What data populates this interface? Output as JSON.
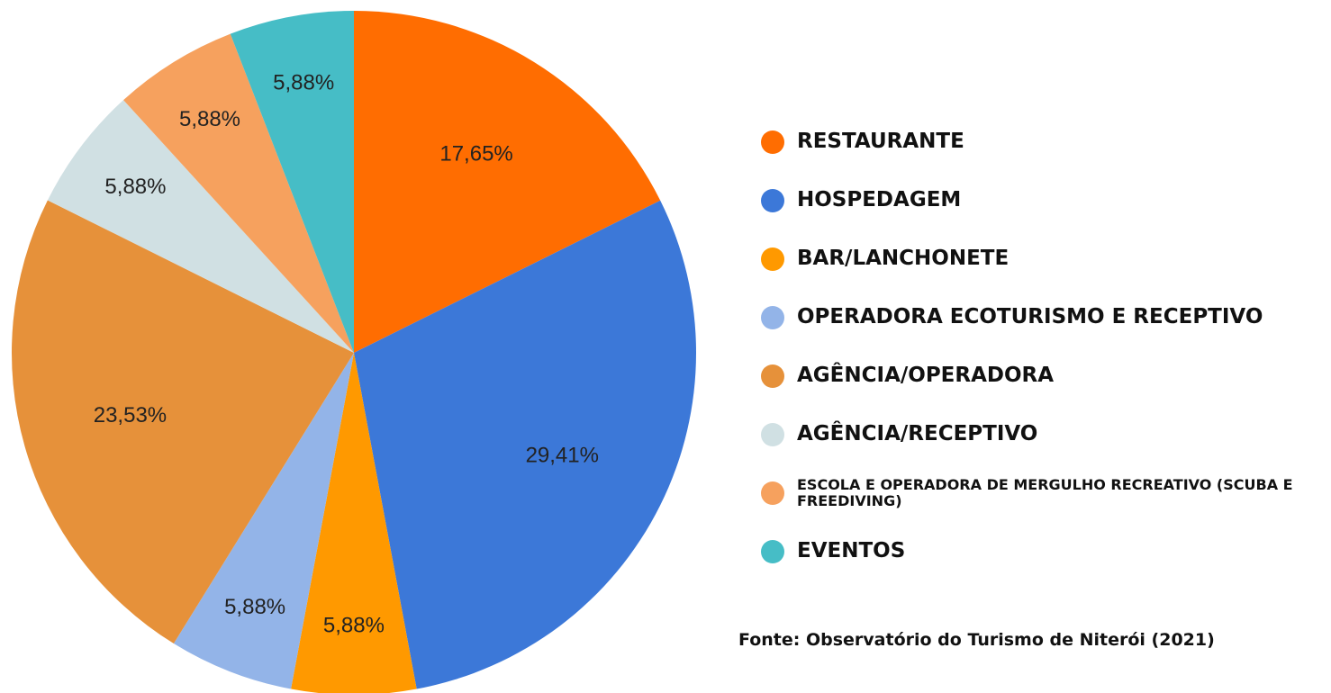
{
  "chart_data": {
    "type": "pie",
    "categories": [
      "RESTAURANTE",
      "HOSPEDAGEM",
      "BAR/LANCHONETE",
      "OPERADORA ECOTURISMO E RECEPTIVO",
      "AGÊNCIA/OPERADORA",
      "AGÊNCIA/RECEPTIVO",
      "ESCOLA E OPERADORA DE MERGULHO RECREATIVO (SCUBA E FREEDIVING)",
      "EVENTOS"
    ],
    "values": [
      17.65,
      29.41,
      5.88,
      5.88,
      23.53,
      5.88,
      5.88,
      5.88
    ],
    "value_labels": [
      "17,65%",
      "29,41%",
      "5,88%",
      "5,88%",
      "23,53%",
      "5,88%",
      "5,88%",
      "5,88%"
    ],
    "colors": [
      "#ff6d01",
      "#3c78d8",
      "#ff9900",
      "#93b4e8",
      "#e6913a",
      "#d0e0e3",
      "#f6a15e",
      "#46bdc6"
    ],
    "legend": "right",
    "source": "Fonte: Observatório do Turismo de Niterói (2021)"
  }
}
